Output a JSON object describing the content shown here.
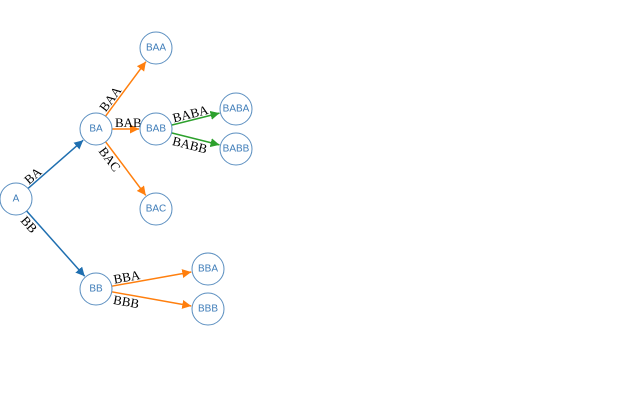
{
  "nodes": [
    "A",
    "BA",
    "BB",
    "BAA",
    "BAB",
    "BAC",
    "BABA",
    "BABB",
    "BBA",
    "BBB"
  ],
  "edges": [
    {
      "from": "A",
      "to": "BA",
      "label": "BA",
      "color": "#1f6fb0"
    },
    {
      "from": "A",
      "to": "BB",
      "label": "BB",
      "color": "#1f6fb0"
    },
    {
      "from": "BA",
      "to": "BAA",
      "label": "BAA",
      "color": "#ff7f0e"
    },
    {
      "from": "BA",
      "to": "BAB",
      "label": "BAB",
      "color": "#ff7f0e"
    },
    {
      "from": "BA",
      "to": "BAC",
      "label": "BAC",
      "color": "#ff7f0e"
    },
    {
      "from": "BAB",
      "to": "BABA",
      "label": "BABA",
      "color": "#2ca02c"
    },
    {
      "from": "BAB",
      "to": "BABB",
      "label": "BABB",
      "color": "#2ca02c"
    },
    {
      "from": "BB",
      "to": "BBA",
      "label": "BBA",
      "color": "#ff7f0e"
    },
    {
      "from": "BB",
      "to": "BBB",
      "label": "BBB",
      "color": "#ff7f0e"
    }
  ]
}
